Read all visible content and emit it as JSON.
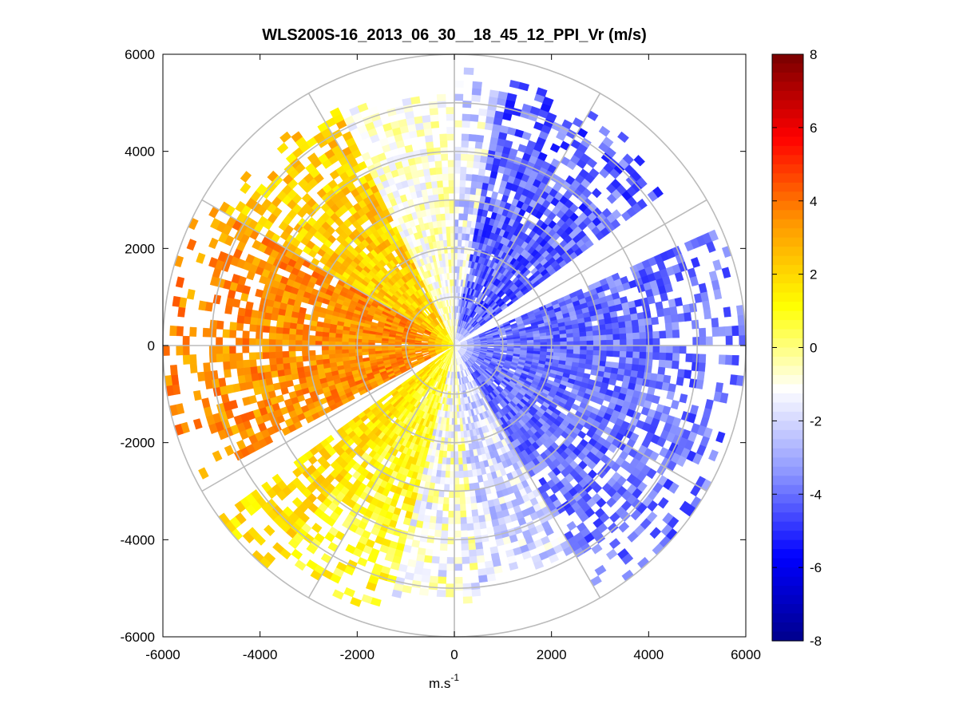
{
  "chart_data": {
    "type": "heatmap",
    "subtype": "polar-ppi",
    "title": "WLS200S-16_2013_06_30__18_45_12_PPI_Vr (m/s)",
    "xlabel": "m.s",
    "xlabel_superscript": "-1",
    "ylabel": "",
    "xlim": [
      -6000,
      6000
    ],
    "ylim": [
      -6000,
      6000
    ],
    "xticks": [
      -6000,
      -4000,
      -2000,
      0,
      2000,
      4000,
      6000
    ],
    "yticks": [
      6000,
      4000,
      2000,
      0,
      -2000,
      -4000,
      -6000
    ],
    "xtick_labels": [
      "-6000",
      "-4000",
      "-2000",
      "0",
      "2000",
      "4000",
      "6000"
    ],
    "ytick_labels": [
      "6000",
      "4000",
      "2000",
      "0",
      "-2000",
      "-4000",
      "-6000"
    ],
    "colorbar": {
      "min": -8,
      "max": 8,
      "ticks": [
        8,
        6,
        4,
        2,
        0,
        -2,
        -4,
        -6,
        -8
      ],
      "tick_labels": [
        "8",
        "6",
        "4",
        "2",
        "0",
        "-2",
        "-4",
        "-6",
        "-8"
      ],
      "colormap": [
        "#00008c",
        "#0000ff",
        "#8c96ff",
        "#ffffff",
        "#ffff00",
        "#ff9600",
        "#ff0000",
        "#780000"
      ]
    },
    "polar_grid": {
      "range_rings": [
        1000,
        2000,
        3000,
        4000,
        5000,
        6000
      ],
      "spokes_deg": [
        0,
        30,
        60,
        90,
        120,
        150,
        180,
        210,
        240,
        270,
        300,
        330
      ],
      "grid_color": "#bbbbbb"
    },
    "max_range": 6000,
    "scan_region": "radial velocity sectors: positive (yellow to red) on west side, negative (blue) on east side, data gaps NE and SW",
    "sectors": [
      {
        "from_deg": 10,
        "to_deg": 55,
        "min_r": 0,
        "max_r": 5600,
        "v_center": -4.2,
        "v_spread": 1.2
      },
      {
        "from_deg": 55,
        "to_deg": 66,
        "min_r": 0,
        "max_r": 0,
        "v_center": 0,
        "v_spread": 0
      },
      {
        "from_deg": 66,
        "to_deg": 150,
        "min_r": 0,
        "max_r": 6000,
        "v_center": -4.0,
        "v_spread": 1.0
      },
      {
        "from_deg": 150,
        "to_deg": 175,
        "min_r": 0,
        "max_r": 5000,
        "v_center": -2.0,
        "v_spread": 1.2
      },
      {
        "from_deg": 175,
        "to_deg": 195,
        "min_r": 0,
        "max_r": 5400,
        "v_center": -1.0,
        "v_spread": 1.5
      },
      {
        "from_deg": 195,
        "to_deg": 220,
        "min_r": 0,
        "max_r": 5800,
        "v_center": 1.0,
        "v_spread": 1.0
      },
      {
        "from_deg": 220,
        "to_deg": 235,
        "min_r": 0,
        "max_r": 6000,
        "v_center": 1.8,
        "v_spread": 0.8
      },
      {
        "from_deg": 235,
        "to_deg": 242,
        "min_r": 0,
        "max_r": 0,
        "v_center": 0,
        "v_spread": 0
      },
      {
        "from_deg": 242,
        "to_deg": 300,
        "min_r": 0,
        "max_r": 6000,
        "v_center": 3.5,
        "v_spread": 0.9
      },
      {
        "from_deg": 300,
        "to_deg": 335,
        "min_r": 0,
        "max_r": 5600,
        "v_center": 2.2,
        "v_spread": 1.0
      },
      {
        "from_deg": 335,
        "to_deg": 360,
        "min_r": 0,
        "max_r": 5400,
        "v_center": -0.8,
        "v_spread": 1.0
      },
      {
        "from_deg": 0,
        "to_deg": 10,
        "min_r": 0,
        "max_r": 5800,
        "v_center": -1.8,
        "v_spread": 1.5
      }
    ]
  }
}
